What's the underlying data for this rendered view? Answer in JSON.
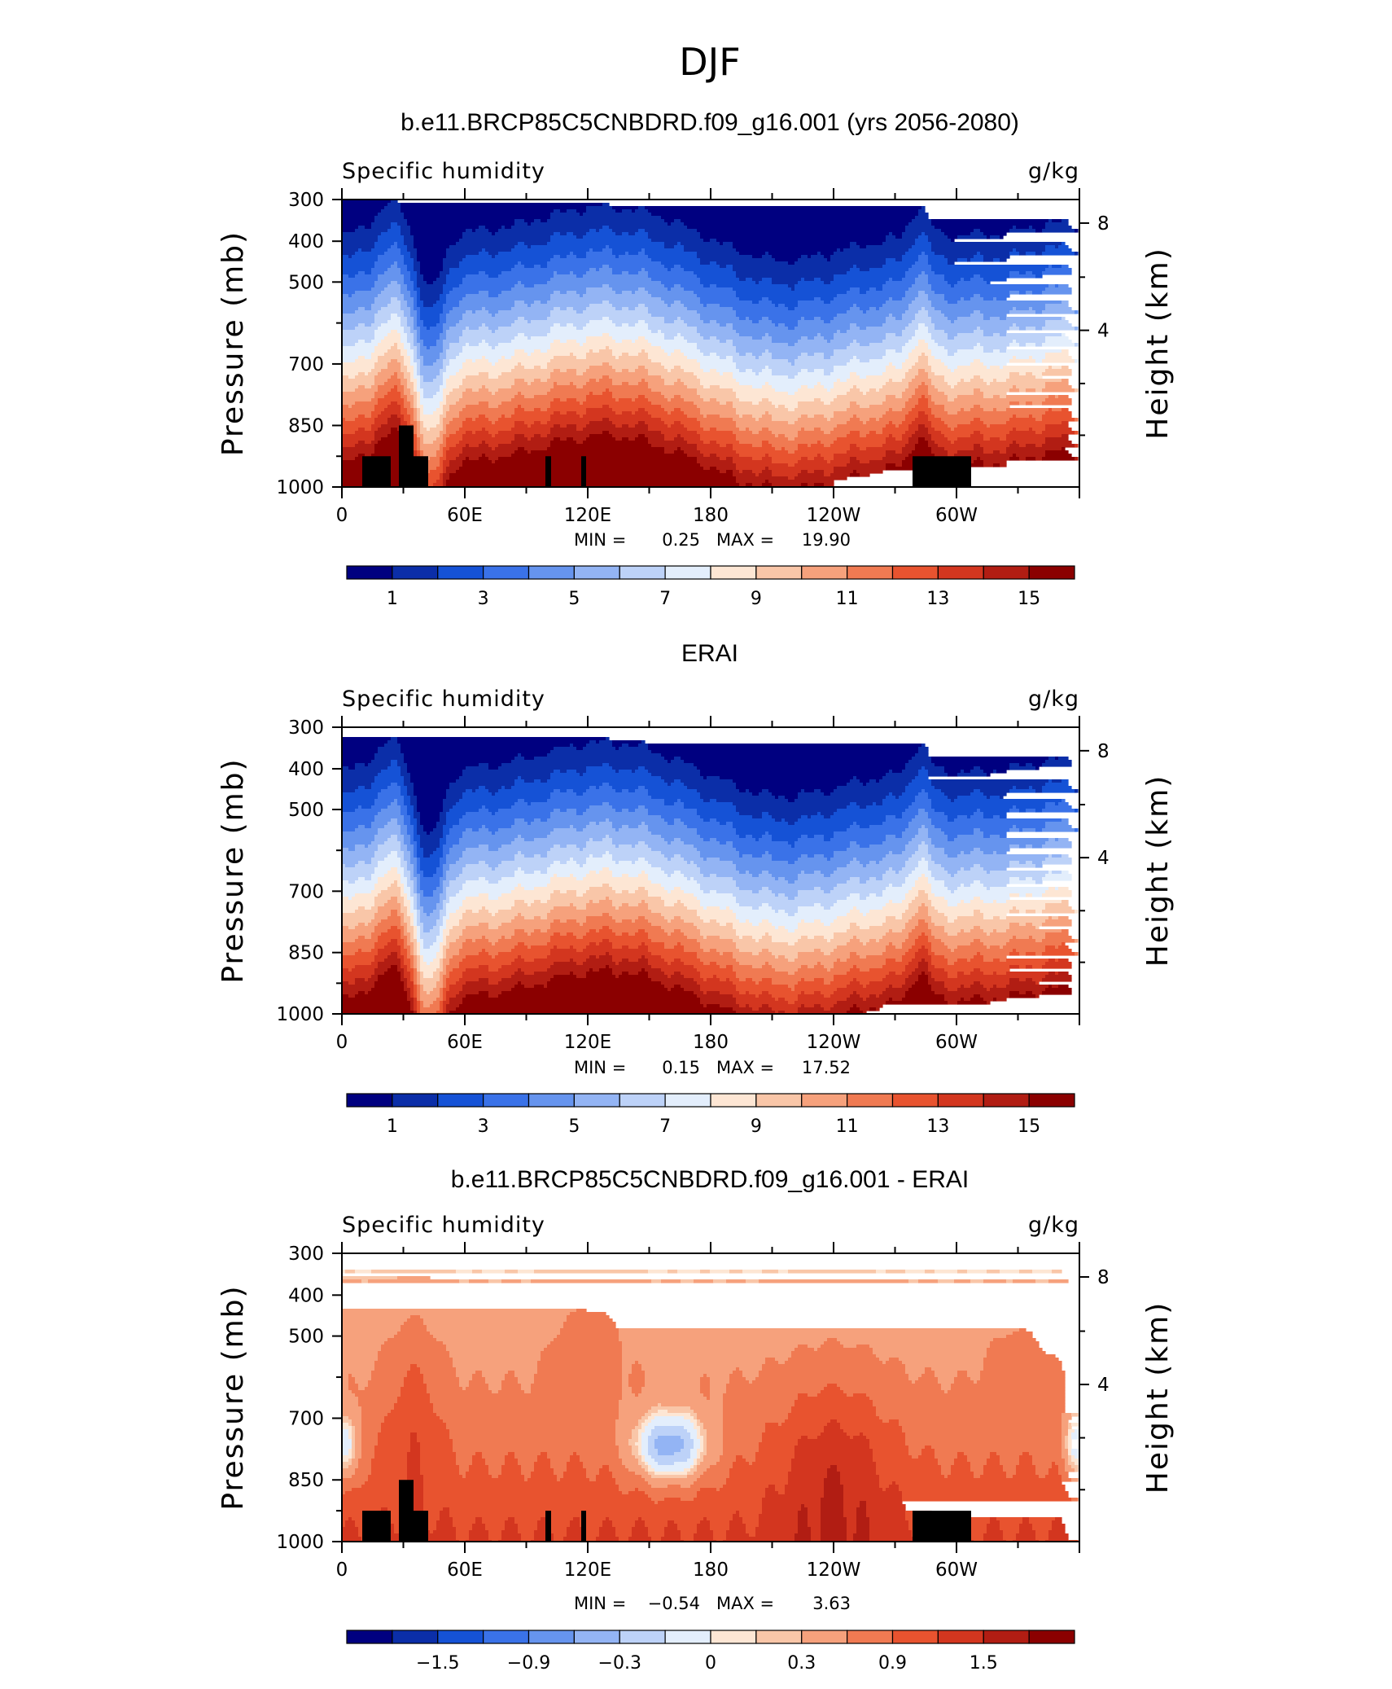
{
  "figure": {
    "title": "DJF"
  },
  "colors": {
    "abs_levels": [
      "#000080",
      "#0b2ea8",
      "#1552d6",
      "#3a72e8",
      "#6694ee",
      "#93b4f4",
      "#bdd2f8",
      "#e3eefc",
      "#fde6d4",
      "#f9c6a8",
      "#f6a17c",
      "#f07a52",
      "#e8532f",
      "#d3361f",
      "#b11d13",
      "#8b0000"
    ],
    "diff_levels": [
      "#000080",
      "#0b2ea8",
      "#1552d6",
      "#3a72e8",
      "#6694ee",
      "#93b4f4",
      "#bdd2f8",
      "#e3eefc",
      "#fde6d4",
      "#f9c6a8",
      "#f6a17c",
      "#f07a52",
      "#e8532f",
      "#d3361f",
      "#b11d13",
      "#8b0000"
    ],
    "topography": "#000000"
  },
  "chart_data": [
    {
      "type": "heatmap",
      "title": "b.e11.BRCP85C5CNBDRD.f09_g16.001 (yrs 2056-2080)",
      "left_string": "Specific humidity",
      "right_string": "g/kg",
      "ylabel": "Pressure (mb)",
      "ylabel_right": "Height (km)",
      "xticks": [
        "0",
        "60E",
        "120E",
        "180",
        "120W",
        "60W"
      ],
      "yticks": [
        "300",
        "400",
        "500",
        "700",
        "850",
        "1000"
      ],
      "yticks_right": [
        "8",
        "4"
      ],
      "stats": {
        "min_label": "MIN =",
        "min": "0.25",
        "max_label": "MAX =",
        "max": "19.90"
      },
      "colorbar_labels": [
        "1",
        "3",
        "5",
        "7",
        "9",
        "11",
        "13",
        "15"
      ],
      "ylim_mb": [
        1000,
        300
      ],
      "xlim_deg": [
        0,
        360
      ],
      "profile": {
        "x": [
          0,
          10,
          20,
          30,
          40,
          50,
          60,
          75,
          90,
          105,
          120,
          135,
          150,
          165,
          180,
          195,
          210,
          225,
          240,
          255,
          270,
          280,
          285,
          290,
          295,
          300,
          310,
          320,
          330,
          345,
          360
        ],
        "level_850_index_offset": [
          0,
          1,
          2,
          3,
          1,
          -3,
          -2,
          0,
          1,
          1,
          2,
          1,
          1,
          0,
          -1,
          -1,
          -2,
          -3,
          -3,
          -2,
          -1,
          1,
          3,
          1,
          0,
          -1,
          0,
          0,
          -1,
          -1,
          0
        ]
      }
    },
    {
      "type": "heatmap",
      "title": "ERAI",
      "left_string": "Specific humidity",
      "right_string": "g/kg",
      "ylabel": "Pressure (mb)",
      "ylabel_right": "Height (km)",
      "xticks": [
        "0",
        "60E",
        "120E",
        "180",
        "120W",
        "60W"
      ],
      "yticks": [
        "300",
        "400",
        "500",
        "700",
        "850",
        "1000"
      ],
      "yticks_right": [
        "8",
        "4"
      ],
      "stats": {
        "min_label": "MIN =",
        "min": "0.15",
        "max_label": "MAX =",
        "max": "17.52"
      },
      "colorbar_labels": [
        "1",
        "3",
        "5",
        "7",
        "9",
        "11",
        "13",
        "15"
      ],
      "ylim_mb": [
        1000,
        300
      ],
      "xlim_deg": [
        0,
        360
      ]
    },
    {
      "type": "heatmap",
      "title": "b.e11.BRCP85C5CNBDRD.f09_g16.001 - ERAI",
      "left_string": "Specific humidity",
      "right_string": "g/kg",
      "ylabel": "Pressure (mb)",
      "ylabel_right": "Height (km)",
      "xticks": [
        "0",
        "60E",
        "120E",
        "180",
        "120W",
        "60W"
      ],
      "yticks": [
        "300",
        "400",
        "500",
        "700",
        "850",
        "1000"
      ],
      "yticks_right": [
        "8",
        "4"
      ],
      "stats": {
        "min_label": "MIN =",
        "min": "−0.54",
        "max_label": "MAX =",
        "max": "3.63"
      },
      "colorbar_labels": [
        "−1.5",
        "−0.9",
        "−0.3",
        "0",
        "0.3",
        "0.9",
        "1.5"
      ],
      "ylim_mb": [
        1000,
        300
      ],
      "xlim_deg": [
        0,
        360
      ]
    }
  ]
}
